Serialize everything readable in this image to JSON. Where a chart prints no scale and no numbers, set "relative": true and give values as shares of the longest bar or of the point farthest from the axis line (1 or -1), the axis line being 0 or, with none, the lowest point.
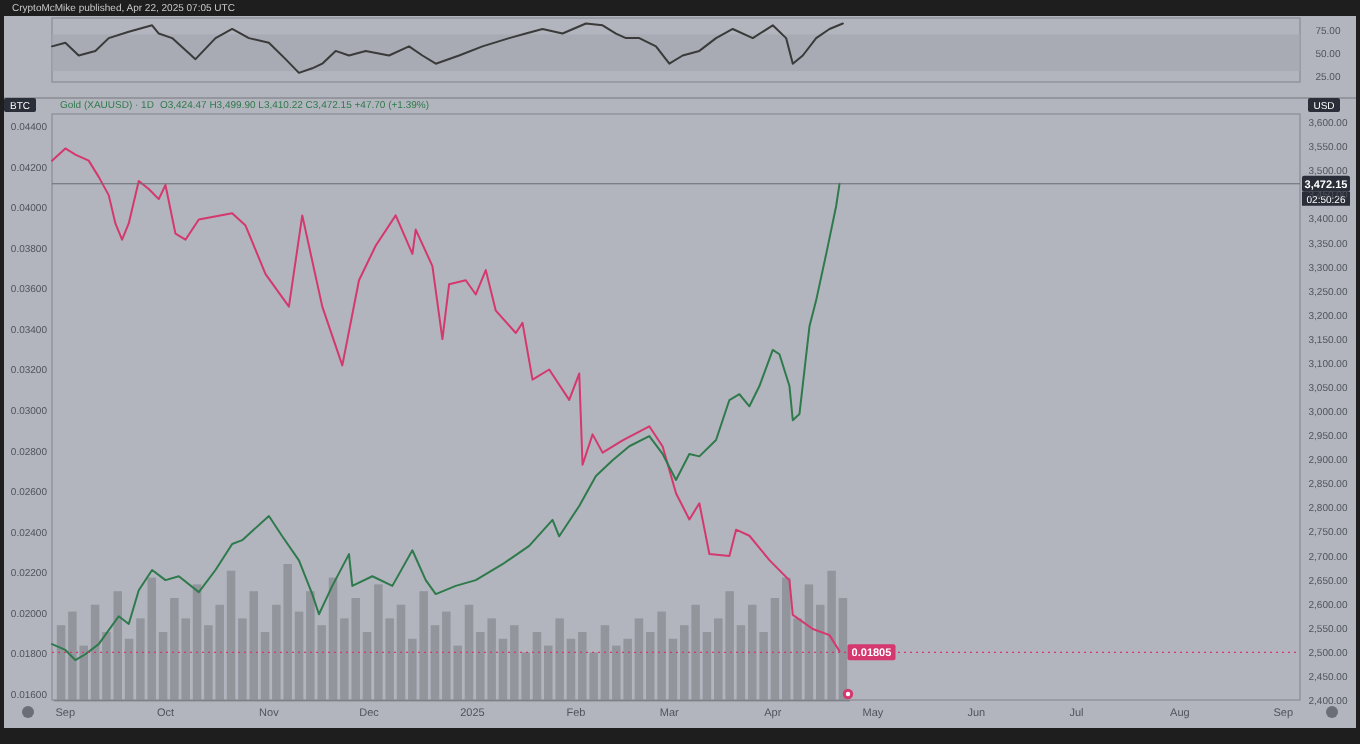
{
  "chart_data": [
    {
      "type": "line",
      "title": "CryptoMcMike published, Apr 22, 2025 07:05 UTC",
      "xlim": [
        "2024-08-28",
        "2025-09-06"
      ],
      "y2lim": [
        18,
        88
      ],
      "y2ticks": [
        {
          "value": 25,
          "label": "25.00"
        },
        {
          "value": 50,
          "label": "50.00"
        },
        {
          "value": 75,
          "label": "75.00"
        }
      ],
      "tick_labels": "y2",
      "bands": [
        {
          "axis": "y2",
          "from": 30,
          "to": 70,
          "color": "#a4a7b0"
        }
      ],
      "series": [
        {
          "color": "#3a3a3a",
          "axis": "y2",
          "x": [
            "2024-08-28",
            "2024-09-01",
            "2024-09-05",
            "2024-09-10",
            "2024-09-14",
            "2024-09-20",
            "2024-09-27",
            "2024-09-29",
            "2024-10-03",
            "2024-10-10",
            "2024-10-16",
            "2024-10-21",
            "2024-10-26",
            "2024-11-01",
            "2024-11-06",
            "2024-11-10",
            "2024-11-14",
            "2024-11-17",
            "2024-11-21",
            "2024-11-25",
            "2024-11-30",
            "2024-12-07",
            "2024-12-13",
            "2024-12-17",
            "2024-12-21",
            "2024-12-28",
            "2025-01-04",
            "2025-01-12",
            "2025-01-17",
            "2025-01-22",
            "2025-01-28",
            "2025-02-04",
            "2025-02-09",
            "2025-02-13",
            "2025-02-16",
            "2025-02-20",
            "2025-02-25",
            "2025-03-01",
            "2025-03-05",
            "2025-03-10",
            "2025-03-15",
            "2025-03-20",
            "2025-03-26",
            "2025-04-01",
            "2025-04-05",
            "2025-04-07",
            "2025-04-10",
            "2025-04-14",
            "2025-04-18",
            "2025-04-22"
          ],
          "values": [
            57,
            61,
            47,
            52,
            66,
            73,
            80,
            71,
            66,
            43,
            66,
            76,
            66,
            61,
            43,
            28,
            33,
            38,
            52,
            47,
            52,
            47,
            57,
            47,
            38,
            47,
            57,
            66,
            71,
            76,
            71,
            82,
            80,
            71,
            66,
            66,
            57,
            38,
            47,
            52,
            66,
            76,
            66,
            80,
            66,
            38,
            47,
            66,
            76,
            82
          ]
        }
      ]
    },
    {
      "type": "line",
      "ylabel": "BTC",
      "y2label": "USD",
      "legend": "top left",
      "annotations": [
        "O3,424.47 H3,499.90 L3,410.22 C3,472.15 +47.70 (+1.39%)",
        "02:50:26"
      ],
      "xlim": [
        "2024-08-28",
        "2025-09-06"
      ],
      "xticks": [
        {
          "value": "2024-09-01",
          "label": "Sep"
        },
        {
          "value": "2024-10-01",
          "label": "Oct"
        },
        {
          "value": "2024-11-01",
          "label": "Nov"
        },
        {
          "value": "2024-12-01",
          "label": "Dec"
        },
        {
          "value": "2025-01-01",
          "label": "2025"
        },
        {
          "value": "2025-02-01",
          "label": "Feb"
        },
        {
          "value": "2025-03-01",
          "label": "Mar"
        },
        {
          "value": "2025-04-01",
          "label": "Apr"
        },
        {
          "value": "2025-05-01",
          "label": "May"
        },
        {
          "value": "2025-06-01",
          "label": "Jun"
        },
        {
          "value": "2025-07-01",
          "label": "Jul"
        },
        {
          "value": "2025-08-01",
          "label": "Aug"
        },
        {
          "value": "2025-09-01",
          "label": "Sep"
        }
      ],
      "ylim": [
        0.0157,
        0.0446
      ],
      "yticks": [
        {
          "value": 0.016,
          "label": "0.01600"
        },
        {
          "value": 0.018,
          "label": "0.01800"
        },
        {
          "value": 0.02,
          "label": "0.02000"
        },
        {
          "value": 0.022,
          "label": "0.02200"
        },
        {
          "value": 0.024,
          "label": "0.02400"
        },
        {
          "value": 0.026,
          "label": "0.02600"
        },
        {
          "value": 0.028,
          "label": "0.02800"
        },
        {
          "value": 0.03,
          "label": "0.03000"
        },
        {
          "value": 0.032,
          "label": "0.03200"
        },
        {
          "value": 0.034,
          "label": "0.03400"
        },
        {
          "value": 0.036,
          "label": "0.03600"
        },
        {
          "value": 0.038,
          "label": "0.03800"
        },
        {
          "value": 0.04,
          "label": "0.04000"
        },
        {
          "value": 0.042,
          "label": "0.04200"
        },
        {
          "value": 0.044,
          "label": "0.04400"
        }
      ],
      "y2lim": [
        2400,
        3617
      ],
      "y2ticks": [
        {
          "value": 2400,
          "label": "2,400.00"
        },
        {
          "value": 2450,
          "label": "2,450.00"
        },
        {
          "value": 2500,
          "label": "2,500.00"
        },
        {
          "value": 2550,
          "label": "2,550.00"
        },
        {
          "value": 2600,
          "label": "2,600.00"
        },
        {
          "value": 2650,
          "label": "2,650.00"
        },
        {
          "value": 2700,
          "label": "2,700.00"
        },
        {
          "value": 2750,
          "label": "2,750.00"
        },
        {
          "value": 2800,
          "label": "2,800.00"
        },
        {
          "value": 2850,
          "label": "2,850.00"
        },
        {
          "value": 2900,
          "label": "2,900.00"
        },
        {
          "value": 2950,
          "label": "2,950.00"
        },
        {
          "value": 3000,
          "label": "3,000.00"
        },
        {
          "value": 3050,
          "label": "3,050.00"
        },
        {
          "value": 3100,
          "label": "3,100.00"
        },
        {
          "value": 3150,
          "label": "3,150.00"
        },
        {
          "value": 3200,
          "label": "3,200.00"
        },
        {
          "value": 3250,
          "label": "3,250.00"
        },
        {
          "value": 3300,
          "label": "3,300.00"
        },
        {
          "value": 3350,
          "label": "3,350.00"
        },
        {
          "value": 3400,
          "label": "3,400.00"
        },
        {
          "value": 3450,
          "label": "3,450.00"
        },
        {
          "value": 3500,
          "label": "3,500.00"
        },
        {
          "value": 3550,
          "label": "3,550.00"
        },
        {
          "value": 3600,
          "label": "3,600.00"
        }
      ],
      "ref_lines": [
        {
          "axis": "y2",
          "value": 3472.15,
          "label": "3,472.15",
          "color": "#6b6e76"
        },
        {
          "axis": "y",
          "value": 0.01805,
          "label": "0.01805",
          "color": "#d4386e",
          "line_style": "dotted"
        }
      ],
      "series": [
        {
          "color": "#d4386e",
          "axis": "y",
          "x": [
            "2024-08-28",
            "2024-09-01",
            "2024-09-04",
            "2024-09-08",
            "2024-09-11",
            "2024-09-14",
            "2024-09-16",
            "2024-09-18",
            "2024-09-20",
            "2024-09-23",
            "2024-09-26",
            "2024-09-29",
            "2024-10-01",
            "2024-10-04",
            "2024-10-07",
            "2024-10-11",
            "2024-10-21",
            "2024-10-25",
            "2024-10-31",
            "2024-11-07",
            "2024-11-11",
            "2024-11-17",
            "2024-11-23",
            "2024-11-28",
            "2024-12-03",
            "2024-12-09",
            "2024-12-14",
            "2024-12-15",
            "2024-12-20",
            "2024-12-23",
            "2024-12-25",
            "2024-12-30",
            "2025-01-02",
            "2025-01-05",
            "2025-01-08",
            "2025-01-14",
            "2025-01-16",
            "2025-01-19",
            "2025-01-24",
            "2025-01-30",
            "2025-02-02",
            "2025-02-03",
            "2025-02-06",
            "2025-02-09",
            "2025-02-15",
            "2025-02-23",
            "2025-02-27",
            "2025-03-03",
            "2025-03-07",
            "2025-03-10",
            "2025-03-13",
            "2025-03-19",
            "2025-03-21",
            "2025-03-25",
            "2025-03-31",
            "2025-04-06",
            "2025-04-07",
            "2025-04-13",
            "2025-04-18",
            "2025-04-21"
          ],
          "values": [
            0.0423,
            0.0429,
            0.0426,
            0.0423,
            0.0415,
            0.0406,
            0.0392,
            0.0384,
            0.0392,
            0.0413,
            0.0409,
            0.0404,
            0.0411,
            0.0387,
            0.0384,
            0.0394,
            0.0397,
            0.0391,
            0.0367,
            0.0351,
            0.0396,
            0.0351,
            0.0322,
            0.0364,
            0.0381,
            0.0396,
            0.0377,
            0.0389,
            0.0371,
            0.0335,
            0.0362,
            0.0364,
            0.0357,
            0.0369,
            0.0349,
            0.0338,
            0.0343,
            0.0315,
            0.032,
            0.0305,
            0.0318,
            0.0273,
            0.0288,
            0.0279,
            0.0285,
            0.0292,
            0.0282,
            0.0259,
            0.0246,
            0.0254,
            0.0229,
            0.0228,
            0.0241,
            0.0238,
            0.0226,
            0.0216,
            0.0199,
            0.0192,
            0.0189,
            0.0181
          ]
        },
        {
          "name": "Gold (XAUUSD) · 1D",
          "color": "#2f7a4c",
          "axis": "y2",
          "x": [
            "2024-08-28",
            "2024-09-01",
            "2024-09-04",
            "2024-09-07",
            "2024-09-11",
            "2024-09-14",
            "2024-09-17",
            "2024-09-20",
            "2024-09-23",
            "2024-09-27",
            "2024-10-01",
            "2024-10-05",
            "2024-10-11",
            "2024-10-16",
            "2024-10-21",
            "2024-10-24",
            "2024-11-01",
            "2024-11-05",
            "2024-11-10",
            "2024-11-14",
            "2024-11-16",
            "2024-11-20",
            "2024-11-25",
            "2024-11-26",
            "2024-12-02",
            "2024-12-08",
            "2024-12-14",
            "2024-12-18",
            "2024-12-21",
            "2024-12-27",
            "2025-01-02",
            "2025-01-10",
            "2025-01-18",
            "2025-01-25",
            "2025-01-27",
            "2025-02-02",
            "2025-02-07",
            "2025-02-12",
            "2025-02-17",
            "2025-02-23",
            "2025-02-27",
            "2025-03-03",
            "2025-03-07",
            "2025-03-10",
            "2025-03-15",
            "2025-03-19",
            "2025-03-22",
            "2025-03-25",
            "2025-03-28",
            "2025-04-01",
            "2025-04-03",
            "2025-04-06",
            "2025-04-07",
            "2025-04-09",
            "2025-04-12",
            "2025-04-14",
            "2025-04-17",
            "2025-04-20",
            "2025-04-21"
          ],
          "values": [
            2516,
            2504,
            2483,
            2495,
            2516,
            2545,
            2574,
            2558,
            2628,
            2670,
            2649,
            2657,
            2624,
            2670,
            2724,
            2732,
            2782,
            2740,
            2690,
            2620,
            2578,
            2637,
            2703,
            2637,
            2657,
            2637,
            2711,
            2649,
            2620,
            2637,
            2649,
            2682,
            2720,
            2774,
            2740,
            2803,
            2865,
            2898,
            2927,
            2948,
            2911,
            2857,
            2911,
            2906,
            2940,
            3023,
            3035,
            3010,
            3052,
            3127,
            3118,
            3052,
            2981,
            2994,
            3176,
            3230,
            3326,
            3426,
            3472
          ]
        }
      ]
    },
    {
      "type": "bar",
      "relative": true,
      "color": "#8c8f97",
      "categories": [
        null,
        null,
        null,
        null,
        null,
        null,
        null,
        null,
        null,
        null,
        null,
        null,
        null,
        null,
        null,
        null,
        null,
        null,
        null,
        null,
        null,
        null,
        null,
        null,
        null,
        null,
        null,
        null,
        null,
        null,
        null,
        null,
        null,
        null,
        null,
        null,
        null,
        null,
        null,
        null,
        null,
        null,
        null,
        null,
        null,
        null,
        null,
        null,
        null,
        null,
        null,
        null,
        null,
        null,
        null,
        null,
        null,
        null,
        null,
        null,
        null,
        null,
        null,
        null,
        null,
        null,
        null,
        null,
        null,
        null
      ],
      "values": [
        0.55,
        0.65,
        0.4,
        0.7,
        0.5,
        0.8,
        0.45,
        0.6,
        0.9,
        0.5,
        0.75,
        0.6,
        0.85,
        0.55,
        0.7,
        0.95,
        0.6,
        0.8,
        0.5,
        0.7,
        1,
        0.65,
        0.8,
        0.55,
        0.9,
        0.6,
        0.75,
        0.5,
        0.85,
        0.6,
        0.7,
        0.45,
        0.8,
        0.55,
        0.65,
        0.4,
        0.7,
        0.5,
        0.6,
        0.45,
        0.55,
        0.35,
        0.5,
        0.4,
        0.6,
        0.45,
        0.5,
        0.35,
        0.55,
        0.4,
        0.45,
        0.6,
        0.5,
        0.65,
        0.45,
        0.55,
        0.7,
        0.5,
        0.6,
        0.8,
        0.55,
        0.7,
        0.5,
        0.75,
        0.9,
        0.6,
        0.85,
        0.7,
        0.95,
        0.75
      ]
    }
  ]
}
